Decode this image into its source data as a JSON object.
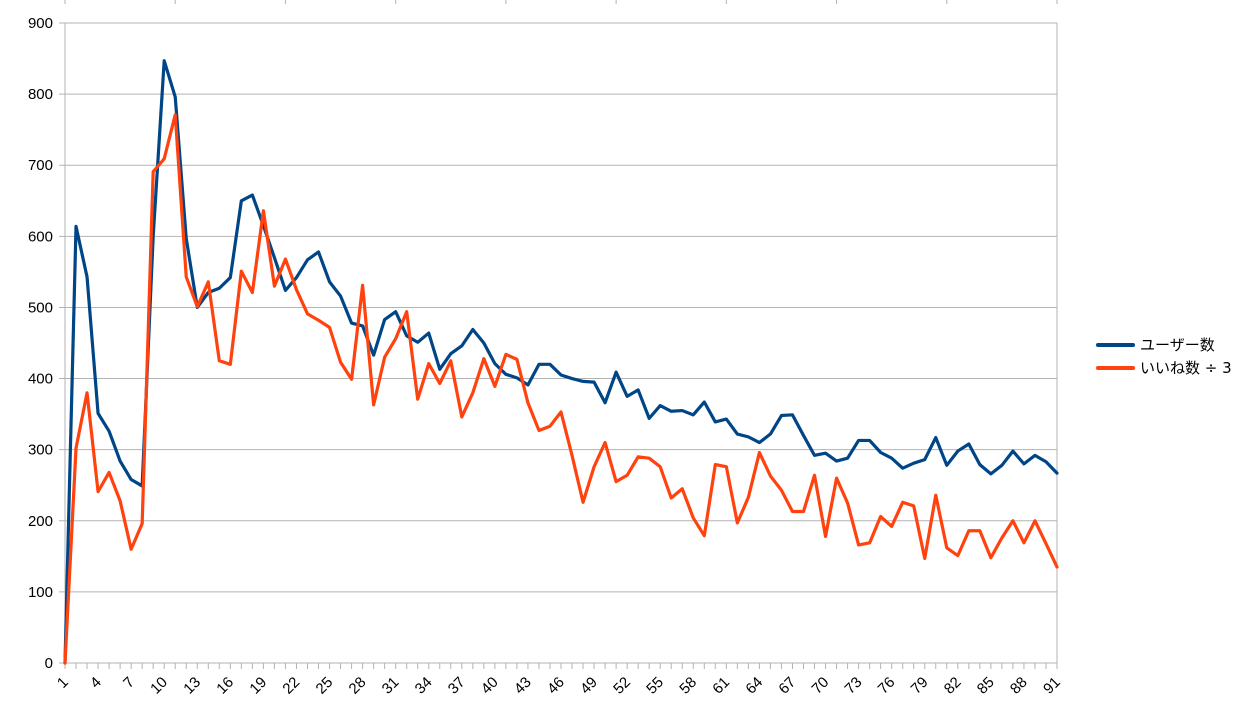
{
  "chart_data": {
    "type": "line",
    "title": "",
    "xlabel": "",
    "ylabel": "",
    "x": [
      1,
      2,
      3,
      4,
      5,
      6,
      7,
      8,
      9,
      10,
      11,
      12,
      13,
      14,
      15,
      16,
      17,
      18,
      19,
      20,
      21,
      22,
      23,
      24,
      25,
      26,
      27,
      28,
      29,
      30,
      31,
      32,
      33,
      34,
      35,
      36,
      37,
      38,
      39,
      40,
      41,
      42,
      43,
      44,
      45,
      46,
      47,
      48,
      49,
      50,
      51,
      52,
      53,
      54,
      55,
      56,
      57,
      58,
      59,
      60,
      61,
      62,
      63,
      64,
      65,
      66,
      67,
      68,
      69,
      70,
      71,
      72,
      73,
      74,
      75,
      76,
      77,
      78,
      79,
      80,
      81,
      82,
      83,
      84,
      85,
      86,
      87,
      88,
      89,
      90,
      91
    ],
    "x_tick_labels": [
      "1",
      "4",
      "7",
      "10",
      "13",
      "16",
      "19",
      "22",
      "25",
      "28",
      "31",
      "34",
      "37",
      "40",
      "43",
      "46",
      "49",
      "52",
      "55",
      "58",
      "61",
      "64",
      "67",
      "70",
      "73",
      "76",
      "79",
      "82",
      "85",
      "88",
      "91"
    ],
    "y_ticks": [
      0,
      100,
      200,
      300,
      400,
      500,
      600,
      700,
      800,
      900
    ],
    "ylim": [
      0,
      900
    ],
    "grid": true,
    "legend_position": "right",
    "series": [
      {
        "name": "ユーザー数",
        "color": "#004586",
        "values": [
          0,
          614,
          543,
          351,
          326,
          284,
          258,
          249,
          600,
          847,
          796,
          597,
          500,
          521,
          527,
          542,
          650,
          658,
          615,
          570,
          524,
          542,
          567,
          578,
          536,
          516,
          478,
          474,
          433,
          483,
          494,
          460,
          451,
          464,
          413,
          435,
          446,
          469,
          450,
          421,
          406,
          401,
          391,
          420,
          420,
          405,
          400,
          396,
          395,
          366,
          409,
          375,
          384,
          344,
          362,
          354,
          355,
          349,
          367,
          339,
          343,
          322,
          318,
          310,
          322,
          348,
          349,
          320,
          292,
          295,
          284,
          288,
          313,
          313,
          296,
          288,
          274,
          281,
          286,
          317,
          278,
          298,
          308,
          279,
          266,
          278,
          298,
          280,
          292,
          283,
          267
        ]
      },
      {
        "name": "いいね数 ÷ 3",
        "color": "#ff420e",
        "values": [
          0,
          302,
          380,
          241,
          268,
          228,
          160,
          196,
          691,
          709,
          771,
          543,
          501,
          536,
          425,
          420,
          551,
          521,
          636,
          530,
          568,
          525,
          491,
          482,
          472,
          423,
          399,
          531,
          363,
          430,
          456,
          494,
          371,
          421,
          393,
          425,
          346,
          380,
          428,
          389,
          434,
          427,
          366,
          327,
          333,
          353,
          292,
          226,
          276,
          310,
          255,
          264,
          290,
          288,
          276,
          232,
          245,
          204,
          179,
          279,
          276,
          197,
          233,
          296,
          263,
          243,
          213,
          213,
          264,
          178,
          260,
          225,
          166,
          169,
          206,
          192,
          226,
          221,
          147,
          236,
          162,
          151,
          186,
          186,
          148,
          176,
          200,
          169,
          200,
          168,
          135
        ]
      }
    ]
  }
}
